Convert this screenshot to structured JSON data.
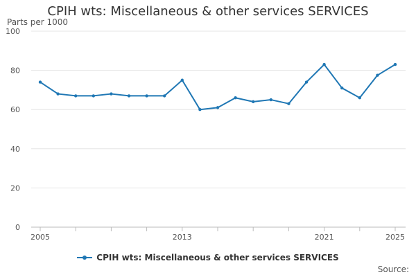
{
  "chart_data": {
    "type": "line",
    "title": "CPIH wts: Miscellaneous & other services SERVICES",
    "ylabel": "Parts per 1000",
    "xlabel": "",
    "ylim": [
      0,
      100
    ],
    "yticks": [
      0,
      20,
      40,
      60,
      80,
      100
    ],
    "xlim": [
      2005,
      2025
    ],
    "xtick_labels": [
      "2005",
      "2013",
      "2021",
      "2025"
    ],
    "x": [
      2005,
      2006,
      2007,
      2008,
      2009,
      2010,
      2011,
      2012,
      2013,
      2014,
      2015,
      2016,
      2017,
      2018,
      2019,
      2020,
      2021,
      2022,
      2023,
      2024,
      2025
    ],
    "series": [
      {
        "name": "CPIH wts: Miscellaneous & other services SERVICES",
        "values": [
          74,
          68,
          67,
          67,
          68,
          67,
          67,
          67,
          75,
          60,
          61,
          66,
          64,
          65,
          63,
          74,
          83,
          71,
          66,
          77.5,
          83
        ]
      }
    ],
    "grid": true,
    "legend_position": "bottom",
    "source_label": "Source:",
    "color": "#1f77b4"
  }
}
